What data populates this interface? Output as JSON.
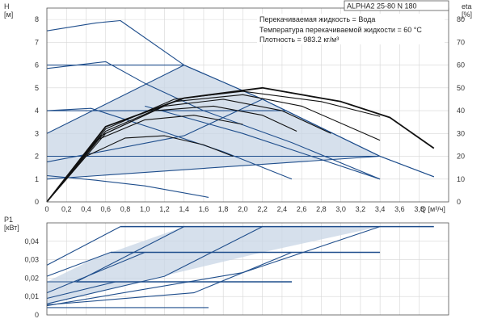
{
  "chart_data": [
    {
      "type": "line",
      "model": "ALPHA2 25-80 N 180",
      "info_lines": [
        "Перекачиваемая жидкость = Вода",
        "Температура перекачиваемой жидкости = 60 °C",
        "Плотность = 983.2 кг/м³"
      ],
      "ylabel_left": "H",
      "yunit_left": "[м]",
      "ylabel_right": "eta",
      "yunit_right": "[%]",
      "xlabel": "Q [м³/ч]",
      "xlim": [
        0,
        4.1
      ],
      "ylim_left": [
        0,
        8.5
      ],
      "ylim_right": [
        0,
        85
      ],
      "x_ticks": [
        "0",
        "0,2",
        "0,4",
        "0,6",
        "0,8",
        "1,0",
        "1,2",
        "1,4",
        "1,6",
        "1,8",
        "2,0",
        "2,2",
        "2,4",
        "2,6",
        "2,8",
        "3,0",
        "3,2",
        "3,4",
        "3,6",
        "3,8"
      ],
      "y_left_ticks": [
        "0",
        "1",
        "2",
        "3",
        "4",
        "5",
        "6",
        "7",
        "8"
      ],
      "y_right_ticks": [
        "0",
        "10",
        "20",
        "30",
        "40",
        "50",
        "60",
        "70",
        "80"
      ],
      "grid": true,
      "series": [
        {
          "role": "head-curve",
          "points": [
            [
              0,
              7.5
            ],
            [
              0.5,
              7.85
            ],
            [
              0.75,
              7.95
            ],
            [
              1.4,
              6.0
            ],
            [
              2.2,
              4.5
            ],
            [
              3.4,
              2.0
            ],
            [
              3.95,
              1.1
            ]
          ]
        },
        {
          "role": "head-curve",
          "points": [
            [
              0,
              5.85
            ],
            [
              0.6,
              6.15
            ],
            [
              1.0,
              5.2
            ],
            [
              1.6,
              4.0
            ],
            [
              2.5,
              2.6
            ],
            [
              3.4,
              1.0
            ]
          ]
        },
        {
          "role": "head-curve",
          "points": [
            [
              0,
              4.0
            ],
            [
              0.45,
              4.1
            ],
            [
              1.1,
              3.2
            ],
            [
              1.8,
              2.2
            ],
            [
              2.5,
              1.0
            ]
          ]
        },
        {
          "role": "head-curve",
          "points": [
            [
              0,
              1.15
            ],
            [
              0.5,
              0.95
            ],
            [
              1.0,
              0.7
            ],
            [
              1.65,
              0.2
            ]
          ]
        },
        {
          "role": "head-curve",
          "points": [
            [
              0,
              6.0
            ],
            [
              1.4,
              6.0
            ]
          ]
        },
        {
          "role": "head-curve",
          "points": [
            [
              0,
              4.0
            ],
            [
              2.45,
              4.0
            ]
          ]
        },
        {
          "role": "head-curve",
          "points": [
            [
              0,
              2.0
            ],
            [
              3.4,
              2.0
            ]
          ]
        },
        {
          "role": "head-curve",
          "points": [
            [
              0,
              1.0
            ],
            [
              3.4,
              2.0
            ]
          ]
        },
        {
          "role": "head-curve",
          "points": [
            [
              0,
              1.75
            ],
            [
              1.4,
              2.9
            ],
            [
              2.2,
              4.5
            ]
          ]
        },
        {
          "role": "head-curve",
          "points": [
            [
              0,
              3.0
            ],
            [
              1.4,
              6.0
            ]
          ]
        },
        {
          "role": "head-curve",
          "points": [
            [
              1.4,
              6.0
            ],
            [
              2.2,
              4.5
            ],
            [
              3.4,
              2.0
            ]
          ]
        },
        {
          "role": "head-curve",
          "points": [
            [
              1.0,
              4.2
            ],
            [
              2.0,
              3.0
            ],
            [
              2.7,
              2.0
            ],
            [
              3.4,
              1.0
            ]
          ]
        },
        {
          "role": "head-curve",
          "points": [
            [
              3.4,
              2.0
            ],
            [
              3.95,
              1.1
            ]
          ]
        },
        {
          "role": "efficiency",
          "points": [
            [
              0,
              0
            ],
            [
              0.6,
              33
            ],
            [
              1.4,
              45.5
            ],
            [
              2.2,
              50
            ],
            [
              3.0,
              44
            ],
            [
              3.5,
              37
            ],
            [
              3.95,
              23.5
            ]
          ]
        },
        {
          "role": "efficiency",
          "points": [
            [
              0,
              0
            ],
            [
              0.6,
              32
            ],
            [
              1.3,
              45
            ],
            [
              2.0,
              48.5
            ],
            [
              2.8,
              44
            ],
            [
              3.4,
              37.5
            ]
          ]
        },
        {
          "role": "efficiency",
          "points": [
            [
              0,
              0
            ],
            [
              0.6,
              31
            ],
            [
              1.3,
              44
            ],
            [
              2.0,
              47
            ],
            [
              2.6,
              42
            ],
            [
              3.4,
              27
            ]
          ]
        },
        {
          "role": "efficiency",
          "points": [
            [
              0,
              0
            ],
            [
              0.6,
              30
            ],
            [
              1.2,
              42
            ],
            [
              1.8,
              45
            ],
            [
              2.4,
              40
            ],
            [
              2.9,
              30
            ]
          ]
        },
        {
          "role": "efficiency",
          "points": [
            [
              0,
              0
            ],
            [
              0.55,
              29
            ],
            [
              1.1,
              40
            ],
            [
              1.7,
              42
            ],
            [
              2.2,
              38
            ],
            [
              2.55,
              31
            ]
          ]
        },
        {
          "role": "efficiency",
          "points": [
            [
              0,
              0
            ],
            [
              0.5,
              27
            ],
            [
              1.0,
              36
            ],
            [
              1.5,
              38
            ],
            [
              2.0,
              34
            ]
          ]
        },
        {
          "role": "efficiency",
          "points": [
            [
              0,
              0
            ],
            [
              0.4,
              20
            ],
            [
              0.8,
              28
            ],
            [
              1.2,
              29
            ],
            [
              1.6,
              25
            ],
            [
              1.9,
              20
            ]
          ]
        }
      ],
      "shaded_region": {
        "points": [
          [
            0,
            3.0
          ],
          [
            1.4,
            6.0
          ],
          [
            2.2,
            4.5
          ],
          [
            3.4,
            2.0
          ],
          [
            0,
            1.0
          ]
        ]
      }
    },
    {
      "type": "line",
      "ylabel": "P1",
      "yunit": "[кВт]",
      "ylim": [
        0,
        0.05
      ],
      "xlim": [
        0,
        4.1
      ],
      "y_ticks": [
        "0",
        "0,01",
        "0,02",
        "0,03",
        "0,04"
      ],
      "grid": true,
      "series": [
        {
          "role": "power-curve",
          "points": [
            [
              0,
              0.027
            ],
            [
              0.75,
              0.048
            ]
          ]
        },
        {
          "role": "power-curve",
          "points": [
            [
              0,
              0.021
            ],
            [
              0.65,
              0.034
            ]
          ]
        },
        {
          "role": "power-curve",
          "points": [
            [
              0,
              0.018
            ],
            [
              0.3,
              0.018
            ],
            [
              1.4,
              0.048
            ]
          ]
        },
        {
          "role": "power-curve",
          "points": [
            [
              0,
              0.012
            ],
            [
              1.0,
              0.034
            ]
          ]
        },
        {
          "role": "power-curve",
          "points": [
            [
              0,
              0.009
            ],
            [
              0.7,
              0.018
            ]
          ]
        },
        {
          "role": "power-curve",
          "points": [
            [
              0,
              0.006
            ],
            [
              1.2,
              0.021
            ],
            [
              2.2,
              0.048
            ]
          ]
        },
        {
          "role": "power-curve",
          "points": [
            [
              0,
              0.005
            ],
            [
              2.0,
              0.023
            ],
            [
              3.4,
              0.048
            ]
          ]
        },
        {
          "role": "power-curve",
          "points": [
            [
              0,
              0.004
            ],
            [
              1.65,
              0.004
            ]
          ]
        },
        {
          "role": "power-curve",
          "points": [
            [
              0,
              0.0055
            ],
            [
              1.5,
              0.012
            ],
            [
              2.5,
              0.034
            ]
          ]
        },
        {
          "role": "power-curve",
          "points": [
            [
              0.75,
              0.048
            ],
            [
              3.95,
              0.048
            ]
          ]
        },
        {
          "role": "power-curve",
          "points": [
            [
              0.65,
              0.034
            ],
            [
              3.4,
              0.034
            ]
          ]
        },
        {
          "role": "power-curve",
          "points": [
            [
              0.3,
              0.018
            ],
            [
              2.5,
              0.018
            ]
          ]
        }
      ],
      "shaded_region": {
        "points": [
          [
            0,
            0.018
          ],
          [
            0.5,
            0.031
          ],
          [
            1.4,
            0.048
          ],
          [
            3.4,
            0.048
          ],
          [
            2.2,
            0.034
          ],
          [
            0,
            0.006
          ]
        ]
      }
    }
  ]
}
